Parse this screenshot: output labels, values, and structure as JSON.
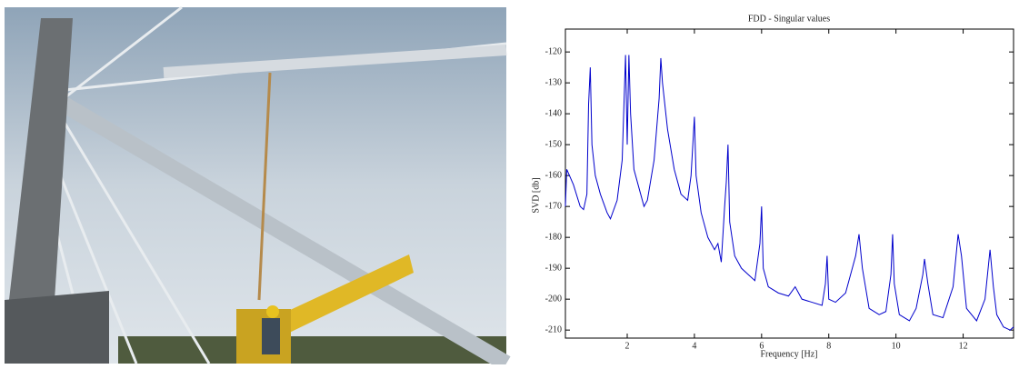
{
  "chart_data": {
    "type": "line",
    "title": "FDD - Singular values",
    "xlabel": "Frequency [Hz]",
    "ylabel": "SVD [db]",
    "color": "#0000cc",
    "x": [
      0.16,
      0.2,
      0.4,
      0.6,
      0.7,
      0.8,
      0.85,
      0.9,
      0.95,
      1.05,
      1.2,
      1.4,
      1.5,
      1.7,
      1.85,
      1.95,
      2.0,
      2.05,
      2.1,
      2.2,
      2.4,
      2.5,
      2.6,
      2.8,
      2.95,
      3.0,
      3.05,
      3.2,
      3.4,
      3.6,
      3.8,
      3.9,
      4.0,
      4.05,
      4.2,
      4.4,
      4.6,
      4.7,
      4.8,
      4.9,
      4.95,
      5.0,
      5.05,
      5.2,
      5.4,
      5.6,
      5.8,
      5.95,
      6.0,
      6.05,
      6.2,
      6.5,
      6.8,
      7.0,
      7.2,
      7.5,
      7.8,
      7.9,
      7.95,
      8.0,
      8.2,
      8.5,
      8.8,
      8.9,
      9.0,
      9.2,
      9.5,
      9.7,
      9.85,
      9.9,
      9.95,
      10.1,
      10.4,
      10.6,
      10.8,
      10.85,
      10.95,
      11.1,
      11.4,
      11.7,
      11.85,
      11.95,
      12.1,
      12.4,
      12.65,
      12.8,
      12.9,
      13.0,
      13.2,
      13.4,
      13.5
    ],
    "values": [
      -170,
      -158,
      -163,
      -170,
      -171,
      -166,
      -137,
      -125,
      -150,
      -160,
      -166,
      -172,
      -174,
      -168,
      -155,
      -121,
      -150,
      -121,
      -140,
      -158,
      -166,
      -170,
      -168,
      -155,
      -135,
      -122,
      -130,
      -145,
      -158,
      -166,
      -168,
      -160,
      -141,
      -160,
      -172,
      -180,
      -184,
      -182,
      -188,
      -170,
      -162,
      -150,
      -175,
      -186,
      -190,
      -192,
      -194,
      -182,
      -170,
      -190,
      -196,
      -198,
      -199,
      -196,
      -200,
      -201,
      -202,
      -195,
      -186,
      -200,
      -201,
      -198,
      -186,
      -179,
      -190,
      -203,
      -205,
      -204,
      -192,
      -179,
      -195,
      -205,
      -207,
      -203,
      -192,
      -187,
      -195,
      -205,
      -206,
      -196,
      -179,
      -186,
      -203,
      -207,
      -200,
      -184,
      -196,
      -205,
      -209,
      -210,
      -209
    ],
    "xlim": [
      0.16,
      13.5
    ],
    "ylim": [
      -212.6,
      -112.6
    ],
    "xticks": [
      2,
      4,
      6,
      8,
      10,
      12
    ],
    "yticks": [
      -120,
      -130,
      -140,
      -150,
      -160,
      -170,
      -180,
      -190,
      -200,
      -210
    ]
  }
}
